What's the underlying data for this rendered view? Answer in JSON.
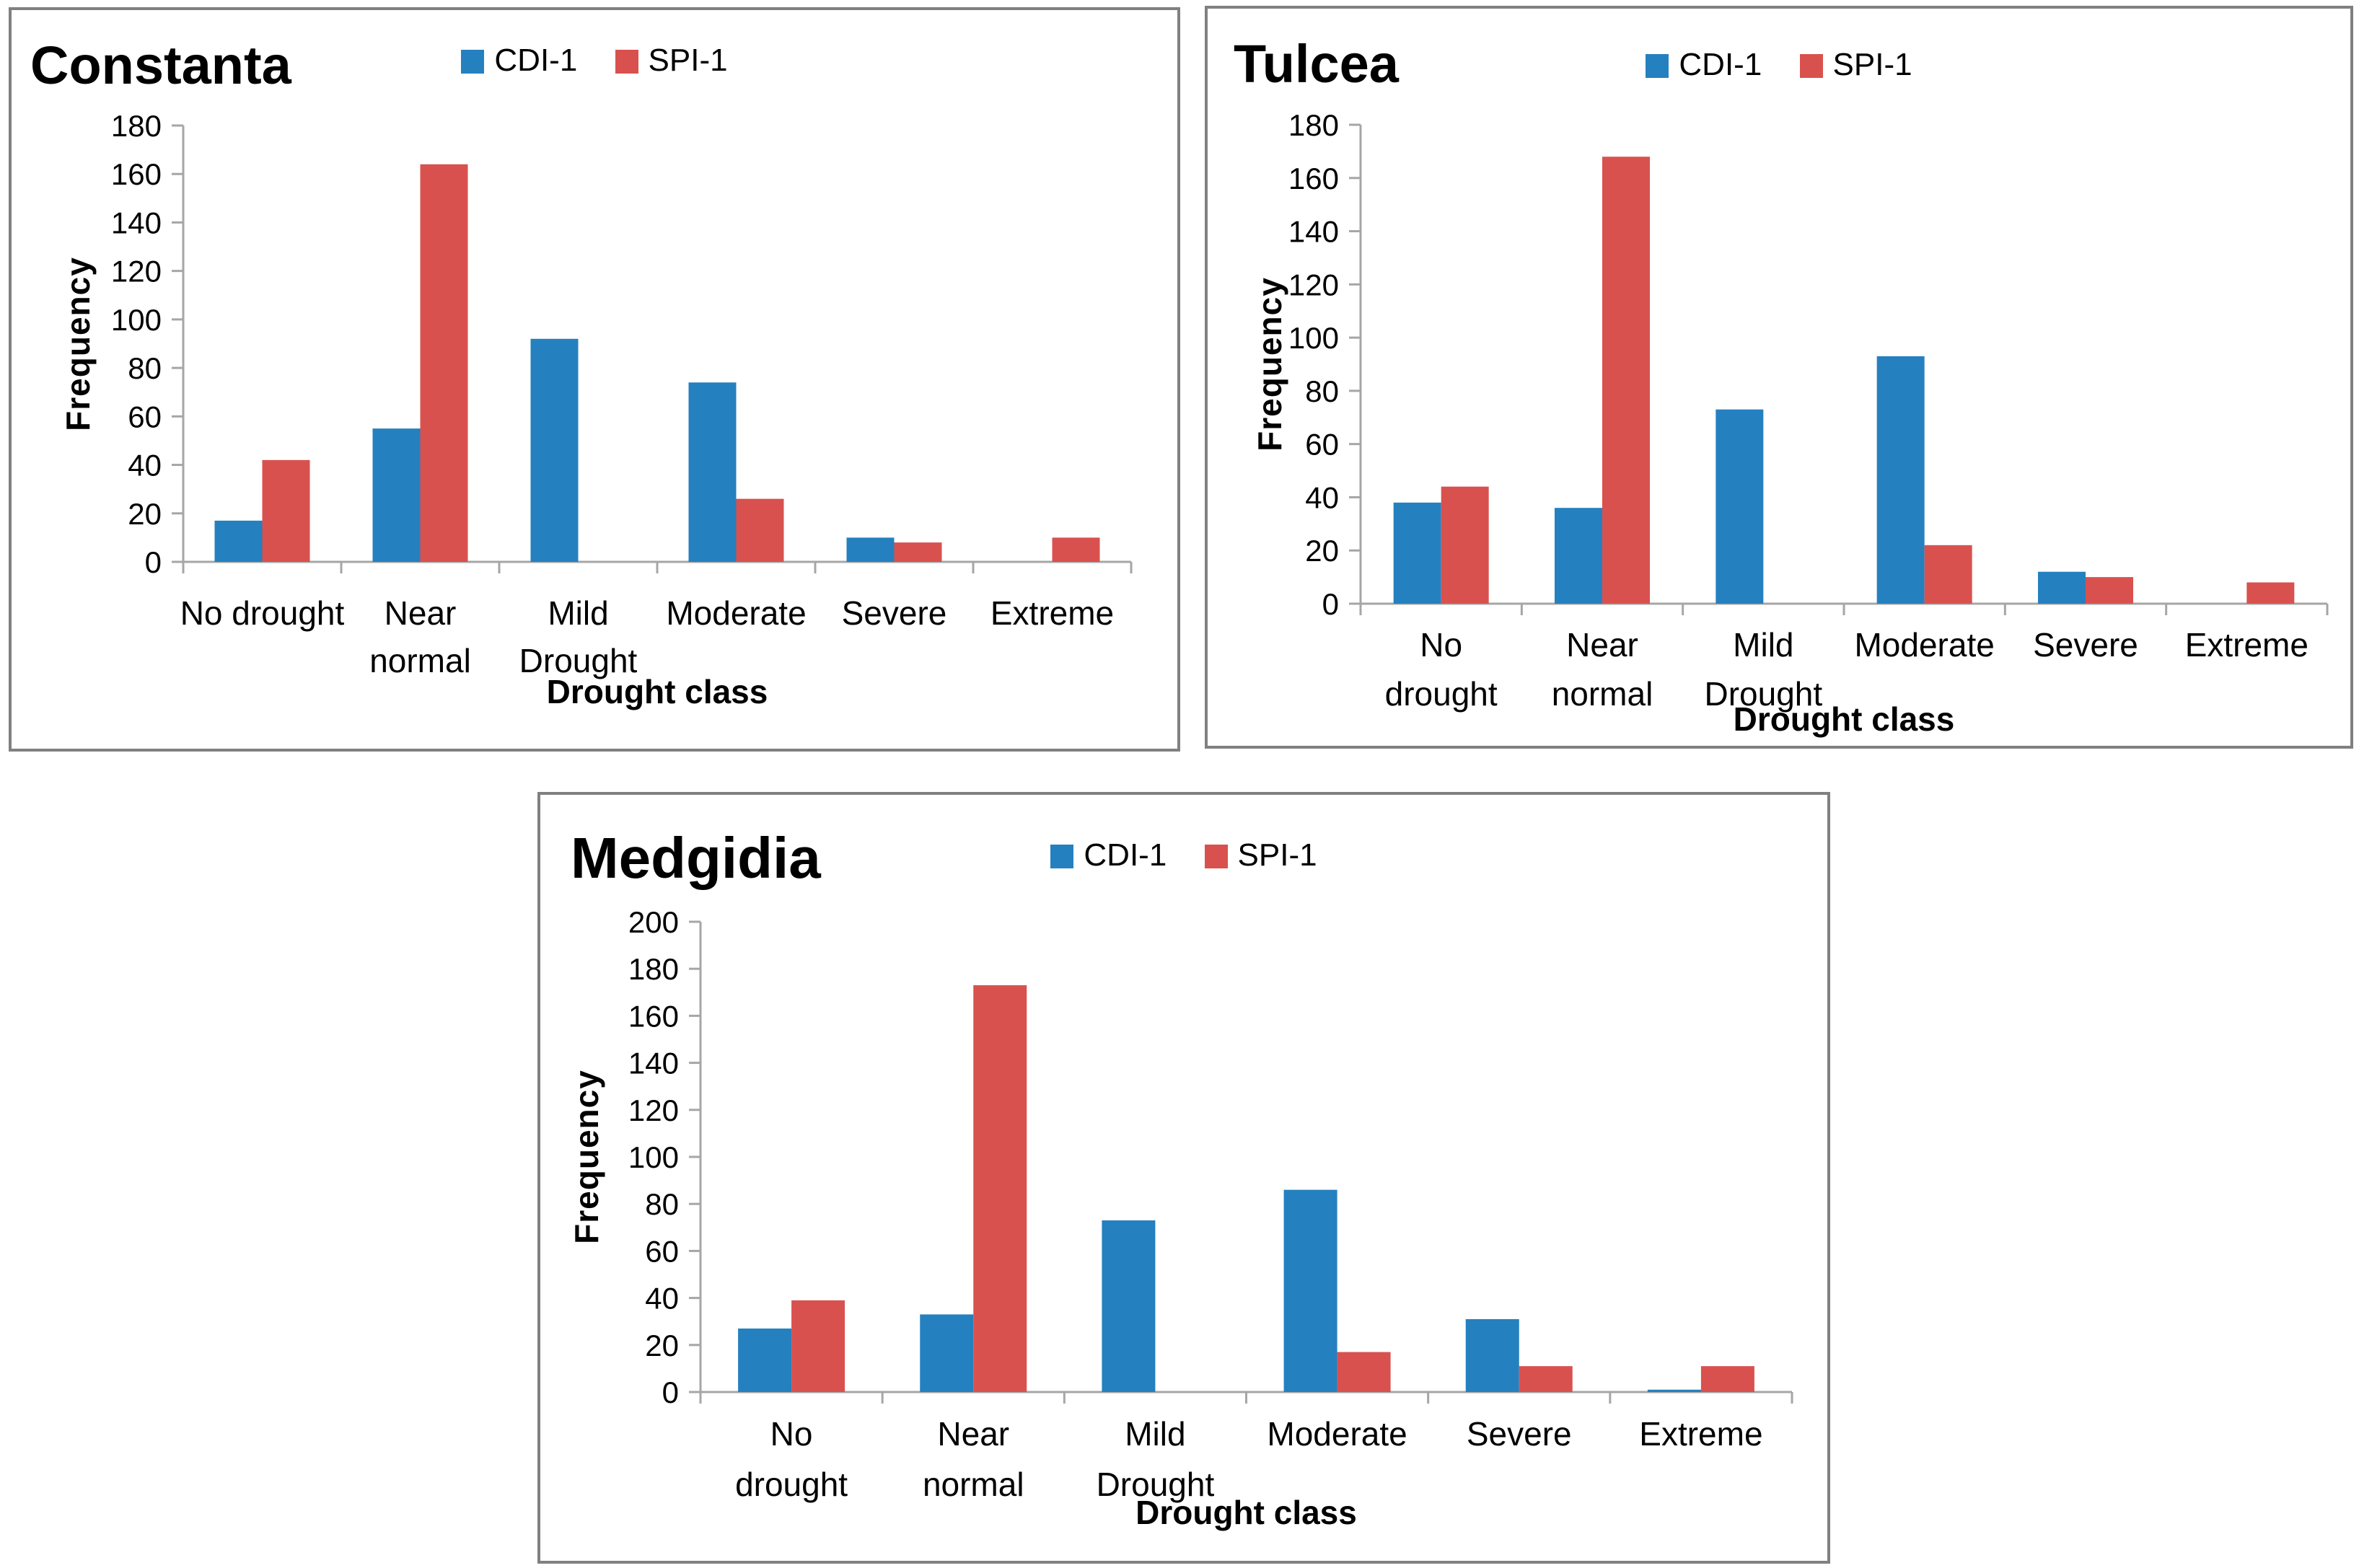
{
  "colors": {
    "cdi_blue": "#2580BF",
    "spi_red": "#D9514E",
    "axis_gray": "#A6A6A6",
    "panel_border_gray": "#808080",
    "text_black": "#000000",
    "background": "#ffffff"
  },
  "chart_data": [
    {
      "type": "bar",
      "title": "Constanta",
      "xlabel": "Drought class",
      "ylabel": "Frequency",
      "ylim": [
        0,
        180
      ],
      "ytick_step": 20,
      "grid": false,
      "legend_position": "top-center",
      "categories": [
        "No drought",
        "Near normal",
        "Mild Drought",
        "Moderate",
        "Severe",
        "Extreme"
      ],
      "category_label_lines": [
        [
          "No drought"
        ],
        [
          "Near",
          "normal"
        ],
        [
          "Mild",
          "Drought"
        ],
        [
          "Moderate"
        ],
        [
          "Severe"
        ],
        [
          "Extreme"
        ]
      ],
      "series": [
        {
          "name": "CDI-1",
          "color": "#2580BF",
          "values": [
            17,
            55,
            92,
            74,
            10,
            0
          ]
        },
        {
          "name": "SPI-1",
          "color": "#D9514E",
          "values": [
            42,
            164,
            0,
            26,
            8,
            10
          ]
        }
      ]
    },
    {
      "type": "bar",
      "title": "Tulcea",
      "xlabel": "Drought class",
      "ylabel": "Frequency",
      "ylim": [
        0,
        180
      ],
      "ytick_step": 20,
      "grid": false,
      "legend_position": "top-center",
      "categories": [
        "No drought",
        "Near normal",
        "Mild Drought",
        "Moderate",
        "Severe",
        "Extreme"
      ],
      "category_label_lines": [
        [
          "No",
          "drought"
        ],
        [
          "Near",
          "normal"
        ],
        [
          "Mild",
          "Drought"
        ],
        [
          "Moderate"
        ],
        [
          "Severe"
        ],
        [
          "Extreme"
        ]
      ],
      "series": [
        {
          "name": "CDI-1",
          "color": "#2580BF",
          "values": [
            38,
            36,
            73,
            93,
            12,
            0
          ]
        },
        {
          "name": "SPI-1",
          "color": "#D9514E",
          "values": [
            44,
            168,
            0,
            22,
            10,
            8
          ]
        }
      ]
    },
    {
      "type": "bar",
      "title": "Medgidia",
      "xlabel": "Drought class",
      "ylabel": "Frequency",
      "ylim": [
        0,
        200
      ],
      "ytick_step": 20,
      "grid": false,
      "legend_position": "top-center",
      "categories": [
        "No drought",
        "Near normal",
        "Mild Drought",
        "Moderate",
        "Severe",
        "Extreme"
      ],
      "category_label_lines": [
        [
          "No",
          "drought"
        ],
        [
          "Near",
          "normal"
        ],
        [
          "Mild",
          "Drought"
        ],
        [
          "Moderate"
        ],
        [
          "Severe"
        ],
        [
          "Extreme"
        ]
      ],
      "series": [
        {
          "name": "CDI-1",
          "color": "#2580BF",
          "values": [
            27,
            33,
            73,
            86,
            31,
            1
          ]
        },
        {
          "name": "SPI-1",
          "color": "#D9514E",
          "values": [
            39,
            173,
            0,
            17,
            11,
            11
          ]
        }
      ]
    }
  ]
}
